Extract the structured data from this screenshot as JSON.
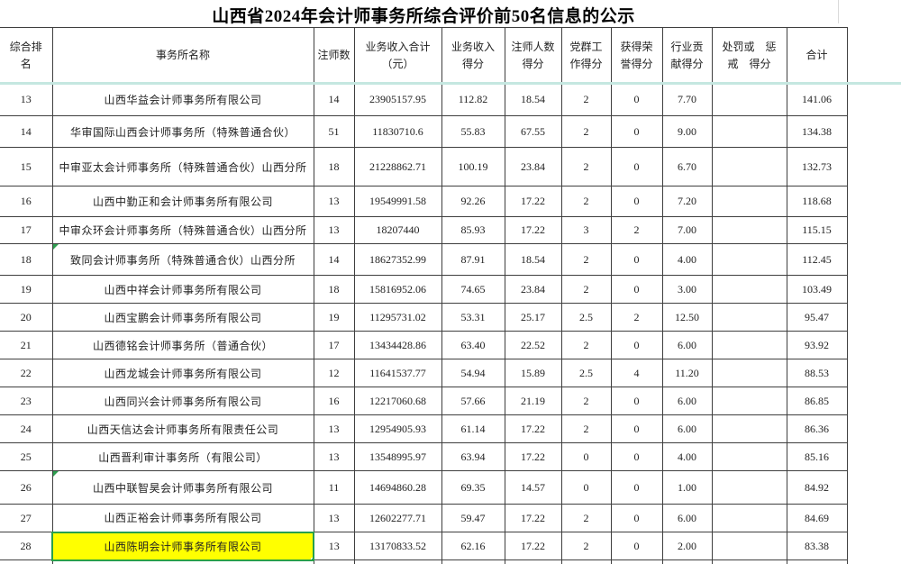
{
  "title": "山西省2024年会计师事务所综合评价前50名信息的公示",
  "accents": {
    "selection_green": "#28a04a",
    "highlight_yellow": "#ffff00",
    "header_divider_teal": "#c5e7e0",
    "grid_border": "#3f3f3f"
  },
  "table": {
    "columns": [
      {
        "key": "rank",
        "name": "rank",
        "label": "综合排\n名"
      },
      {
        "key": "name",
        "name": "firm-name",
        "label": "事务所名称"
      },
      {
        "key": "cpa_count",
        "name": "cpa-count",
        "label": "注师数"
      },
      {
        "key": "revenue",
        "name": "revenue-total",
        "label": "业务收入合计\n（元）"
      },
      {
        "key": "revenue_score",
        "name": "revenue-score",
        "label": "业务收入\n得分"
      },
      {
        "key": "cpa_score",
        "name": "cpa-score",
        "label": "注师人数\n得分"
      },
      {
        "key": "party_score",
        "name": "party-score",
        "label": "党群工\n作得分"
      },
      {
        "key": "honor_score",
        "name": "honor-score",
        "label": "获得荣\n誉得分"
      },
      {
        "key": "industry_score",
        "name": "industry-score",
        "label": "行业贡\n献得分"
      },
      {
        "key": "penalty_score",
        "name": "penalty-score",
        "label": "处罚或　惩\n戒　得分"
      },
      {
        "key": "total",
        "name": "total-score",
        "label": "合计"
      }
    ],
    "rows": [
      {
        "rank": "13",
        "name": "山西华益会计师事务所有限公司",
        "cpa_count": "14",
        "revenue": "23905157.95",
        "revenue_score": "112.82",
        "cpa_score": "18.54",
        "party_score": "2",
        "honor_score": "0",
        "industry_score": "7.70",
        "penalty_score": "",
        "total": "141.06",
        "highlighted": false,
        "error_marker": false
      },
      {
        "rank": "14",
        "name": "华审国际山西会计师事务所（特殊普通合伙）",
        "cpa_count": "51",
        "revenue": "11830710.6",
        "revenue_score": "55.83",
        "cpa_score": "67.55",
        "party_score": "2",
        "honor_score": "0",
        "industry_score": "9.00",
        "penalty_score": "",
        "total": "134.38",
        "highlighted": false,
        "error_marker": false
      },
      {
        "rank": "15",
        "name": "中审亚太会计师事务所（特殊普通合伙）山西分所",
        "cpa_count": "18",
        "revenue": "21228862.71",
        "revenue_score": "100.19",
        "cpa_score": "23.84",
        "party_score": "2",
        "honor_score": "0",
        "industry_score": "6.70",
        "penalty_score": "",
        "total": "132.73",
        "highlighted": false,
        "error_marker": false
      },
      {
        "rank": "16",
        "name": "山西中勤正和会计师事务所有限公司",
        "cpa_count": "13",
        "revenue": "19549991.58",
        "revenue_score": "92.26",
        "cpa_score": "17.22",
        "party_score": "2",
        "honor_score": "0",
        "industry_score": "7.20",
        "penalty_score": "",
        "total": "118.68",
        "highlighted": false,
        "error_marker": false
      },
      {
        "rank": "17",
        "name": "中审众环会计师事务所（特殊普通合伙）山西分所",
        "cpa_count": "13",
        "revenue": "18207440",
        "revenue_score": "85.93",
        "cpa_score": "17.22",
        "party_score": "3",
        "honor_score": "2",
        "industry_score": "7.00",
        "penalty_score": "",
        "total": "115.15",
        "highlighted": false,
        "error_marker": false
      },
      {
        "rank": "18",
        "name": "致同会计师事务所（特殊普通合伙）山西分所",
        "cpa_count": "14",
        "revenue": "18627352.99",
        "revenue_score": "87.91",
        "cpa_score": "18.54",
        "party_score": "2",
        "honor_score": "0",
        "industry_score": "4.00",
        "penalty_score": "",
        "total": "112.45",
        "highlighted": false,
        "error_marker": true
      },
      {
        "rank": "19",
        "name": "山西中祥会计师事务所有限公司",
        "cpa_count": "18",
        "revenue": "15816952.06",
        "revenue_score": "74.65",
        "cpa_score": "23.84",
        "party_score": "2",
        "honor_score": "0",
        "industry_score": "3.00",
        "penalty_score": "",
        "total": "103.49",
        "highlighted": false,
        "error_marker": false
      },
      {
        "rank": "20",
        "name": "山西宝鹏会计师事务所有限公司",
        "cpa_count": "19",
        "revenue": "11295731.02",
        "revenue_score": "53.31",
        "cpa_score": "25.17",
        "party_score": "2.5",
        "honor_score": "2",
        "industry_score": "12.50",
        "penalty_score": "",
        "total": "95.47",
        "highlighted": false,
        "error_marker": false
      },
      {
        "rank": "21",
        "name": "山西德铭会计师事务所（普通合伙）",
        "cpa_count": "17",
        "revenue": "13434428.86",
        "revenue_score": "63.40",
        "cpa_score": "22.52",
        "party_score": "2",
        "honor_score": "0",
        "industry_score": "6.00",
        "penalty_score": "",
        "total": "93.92",
        "highlighted": false,
        "error_marker": false
      },
      {
        "rank": "22",
        "name": "山西龙城会计师事务所有限公司",
        "cpa_count": "12",
        "revenue": "11641537.77",
        "revenue_score": "54.94",
        "cpa_score": "15.89",
        "party_score": "2.5",
        "honor_score": "4",
        "industry_score": "11.20",
        "penalty_score": "",
        "total": "88.53",
        "highlighted": false,
        "error_marker": false
      },
      {
        "rank": "23",
        "name": "山西同兴会计师事务所有限公司",
        "cpa_count": "16",
        "revenue": "12217060.68",
        "revenue_score": "57.66",
        "cpa_score": "21.19",
        "party_score": "2",
        "honor_score": "0",
        "industry_score": "6.00",
        "penalty_score": "",
        "total": "86.85",
        "highlighted": false,
        "error_marker": false
      },
      {
        "rank": "24",
        "name": "山西天信达会计师事务所有限责任公司",
        "cpa_count": "13",
        "revenue": "12954905.93",
        "revenue_score": "61.14",
        "cpa_score": "17.22",
        "party_score": "2",
        "honor_score": "0",
        "industry_score": "6.00",
        "penalty_score": "",
        "total": "86.36",
        "highlighted": false,
        "error_marker": false
      },
      {
        "rank": "25",
        "name": "山西晋利审计事务所（有限公司）",
        "cpa_count": "13",
        "revenue": "13548995.97",
        "revenue_score": "63.94",
        "cpa_score": "17.22",
        "party_score": "0",
        "honor_score": "0",
        "industry_score": "4.00",
        "penalty_score": "",
        "total": "85.16",
        "highlighted": false,
        "error_marker": false
      },
      {
        "rank": "26",
        "name": "山西中联智昊会计师事务所有限公司",
        "cpa_count": "11",
        "revenue": "14694860.28",
        "revenue_score": "69.35",
        "cpa_score": "14.57",
        "party_score": "0",
        "honor_score": "0",
        "industry_score": "1.00",
        "penalty_score": "",
        "total": "84.92",
        "highlighted": false,
        "error_marker": true
      },
      {
        "rank": "27",
        "name": "山西正裕会计师事务所有限公司",
        "cpa_count": "13",
        "revenue": "12602277.71",
        "revenue_score": "59.47",
        "cpa_score": "17.22",
        "party_score": "2",
        "honor_score": "0",
        "industry_score": "6.00",
        "penalty_score": "",
        "total": "84.69",
        "highlighted": false,
        "error_marker": false
      },
      {
        "rank": "28",
        "name": "山西陈明会计师事务所有限公司",
        "cpa_count": "13",
        "revenue": "13170833.52",
        "revenue_score": "62.16",
        "cpa_score": "17.22",
        "party_score": "2",
        "honor_score": "0",
        "industry_score": "2.00",
        "penalty_score": "",
        "total": "83.38",
        "highlighted": true,
        "error_marker": false
      }
    ]
  }
}
